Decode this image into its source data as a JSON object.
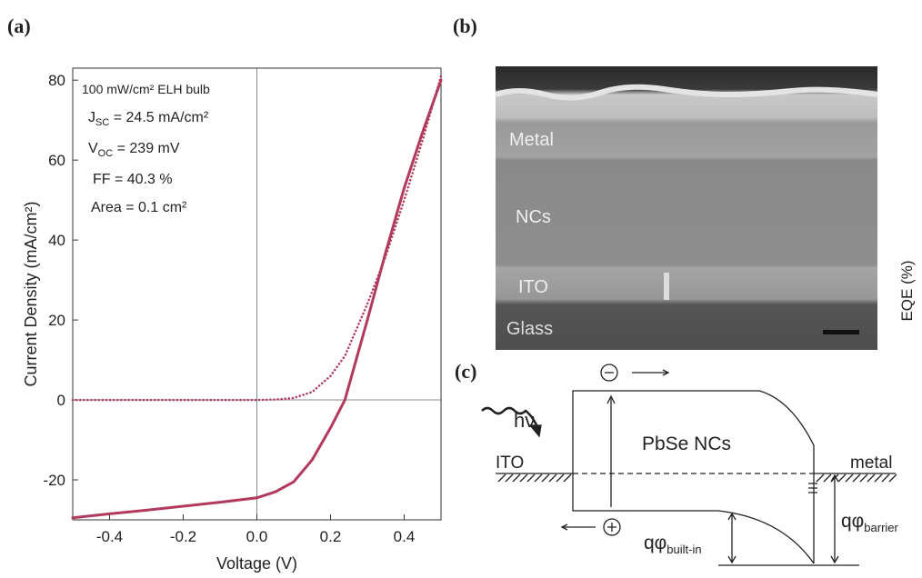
{
  "panel_labels": [
    "(a)",
    "(b)",
    "(c)"
  ],
  "chart_data": {
    "type": "line",
    "x_label": "Voltage (V)",
    "y_label": "Current Density (mA/cm²)",
    "annotations": [
      {
        "text": "100 mW/cm² ELH bulb"
      },
      {
        "main": "J",
        "sub": "SC",
        "rest": " = 24.5 mA/cm²"
      },
      {
        "main": "V",
        "sub": "OC",
        "rest": " = 239 mV"
      },
      {
        "text": "FF = 40.3 %"
      },
      {
        "text": "Area = 0.1 cm²"
      }
    ],
    "x": [
      -0.5,
      -0.4,
      -0.3,
      -0.2,
      -0.1,
      0,
      0.05,
      0.1,
      0.15,
      0.2,
      0.239,
      0.3,
      0.35,
      0.4,
      0.45,
      0.5
    ],
    "series": [
      {
        "color": "#b23a5c",
        "style": "solid",
        "values": [
          -29.5,
          -28.5,
          -27.6,
          -26.6,
          -25.6,
          -24.5,
          -23,
          -20.5,
          -15,
          -7,
          0,
          20,
          37,
          53,
          67,
          80
        ]
      },
      {
        "color": "#b23a5c",
        "style": "dotted",
        "values": [
          0,
          0,
          0,
          0,
          0,
          0,
          0.1,
          0.5,
          2,
          6,
          11,
          24,
          36,
          50,
          65,
          81
        ]
      }
    ],
    "xlim": [
      -0.5,
      0.5
    ],
    "ylim": [
      -30,
      83
    ],
    "xticks": [
      -0.4,
      -0.2,
      {
        "value": 0,
        "label": "0.0"
      },
      0.2,
      0.4
    ],
    "yticks": [
      -20,
      0,
      20,
      40,
      60,
      80
    ],
    "zero_lines": true
  },
  "sem_image": {
    "layers": [
      "Metal",
      "NCs",
      "ITO",
      "Glass"
    ],
    "side_label": "EQE (%)"
  },
  "band_diagram": {
    "light": "hν",
    "nc_label": "PbSe NCs",
    "left_contact": "ITO",
    "right_contact": "metal",
    "built_in": {
      "main": "qφ",
      "sub": "built-in"
    },
    "barrier": {
      "main": "qφ",
      "sub": "barrier"
    }
  }
}
